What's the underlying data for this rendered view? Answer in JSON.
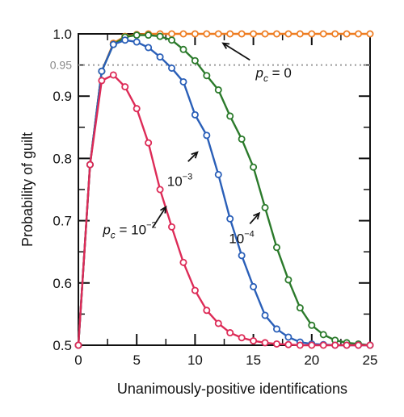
{
  "chart_data": {
    "type": "line",
    "xlabel": "Unanimously-positive identifications",
    "ylabel": "Probability of guilt",
    "xlim": [
      0,
      25
    ],
    "ylim": [
      0.5,
      1.0
    ],
    "xticks": [
      0,
      5,
      10,
      15,
      20,
      25
    ],
    "yticks": [
      0.5,
      0.6,
      0.7,
      0.8,
      0.9,
      1.0
    ],
    "xtick_labels": [
      "0",
      "5",
      "10",
      "15",
      "20",
      "25"
    ],
    "ytick_labels": [
      "0.5",
      "0.6",
      "0.7",
      "0.8",
      "0.9",
      "1.0"
    ],
    "grid": false,
    "reference_line": {
      "y": 0.95,
      "label": "0.95",
      "color": "#9a9a9a",
      "style": "dotted"
    },
    "series": [
      {
        "pc_exp": "0",
        "color": "#ee7d22",
        "x": [
          0,
          1,
          2,
          3,
          4,
          5,
          6,
          7,
          8,
          9,
          10,
          11,
          12,
          13,
          14,
          15,
          16,
          17,
          18,
          19,
          20,
          21,
          22,
          23,
          24,
          25
        ],
        "values": [
          0.5,
          0.79,
          0.94,
          0.985,
          0.996,
          0.999,
          1.0,
          1.0,
          1.0,
          1.0,
          1.0,
          1.0,
          1.0,
          1.0,
          1.0,
          1.0,
          1.0,
          1.0,
          1.0,
          1.0,
          1.0,
          1.0,
          1.0,
          1.0,
          1.0,
          1.0
        ]
      },
      {
        "pc_exp": "-4",
        "color": "#2b7a2b",
        "x": [
          0,
          1,
          2,
          3,
          4,
          5,
          6,
          7,
          8,
          9,
          10,
          11,
          12,
          13,
          14,
          15,
          16,
          17,
          18,
          19,
          20,
          21,
          22,
          23,
          24,
          25
        ],
        "values": [
          0.5,
          0.79,
          0.94,
          0.983,
          0.995,
          0.998,
          0.998,
          0.996,
          0.99,
          0.975,
          0.957,
          0.933,
          0.91,
          0.868,
          0.831,
          0.786,
          0.721,
          0.657,
          0.605,
          0.56,
          0.532,
          0.517,
          0.508,
          0.504,
          0.502,
          0.5
        ]
      },
      {
        "pc_exp": "-3",
        "color": "#2a5fb8",
        "x": [
          0,
          1,
          2,
          3,
          4,
          5,
          6,
          7,
          8,
          9,
          10,
          11,
          12,
          13,
          14,
          15,
          16,
          17,
          18,
          19,
          20,
          21,
          22,
          23,
          24,
          25
        ],
        "values": [
          0.5,
          0.79,
          0.94,
          0.983,
          0.99,
          0.987,
          0.978,
          0.963,
          0.945,
          0.923,
          0.87,
          0.837,
          0.774,
          0.703,
          0.644,
          0.594,
          0.548,
          0.526,
          0.513,
          0.505,
          0.502,
          0.501,
          0.5,
          0.5,
          0.5,
          0.5
        ]
      },
      {
        "pc_exp": "-2",
        "color": "#dd2b57",
        "x": [
          0,
          1,
          2,
          3,
          4,
          5,
          6,
          7,
          8,
          9,
          10,
          11,
          12,
          13,
          14,
          15,
          16,
          17,
          18,
          19,
          20,
          21,
          22,
          23,
          24,
          25
        ],
        "values": [
          0.5,
          0.79,
          0.925,
          0.934,
          0.915,
          0.88,
          0.825,
          0.75,
          0.69,
          0.633,
          0.588,
          0.556,
          0.535,
          0.52,
          0.512,
          0.507,
          0.504,
          0.502,
          0.501,
          0.5,
          0.5,
          0.5,
          0.5,
          0.5,
          0.5,
          0.5
        ]
      }
    ],
    "annotations": [
      {
        "id": "pc0",
        "base": "p",
        "sub": "c",
        "mid": " = ",
        "main": "0",
        "sup": ""
      },
      {
        "id": "pc-2",
        "base": "p",
        "sub": "c",
        "mid": " = ",
        "main": "10",
        "sup": "−2"
      },
      {
        "id": "pc-3",
        "base": "",
        "sub": "",
        "mid": "",
        "main": "10",
        "sup": "−3"
      },
      {
        "id": "pc-4",
        "base": "",
        "sub": "",
        "mid": "",
        "main": "10",
        "sup": "−4"
      }
    ]
  }
}
